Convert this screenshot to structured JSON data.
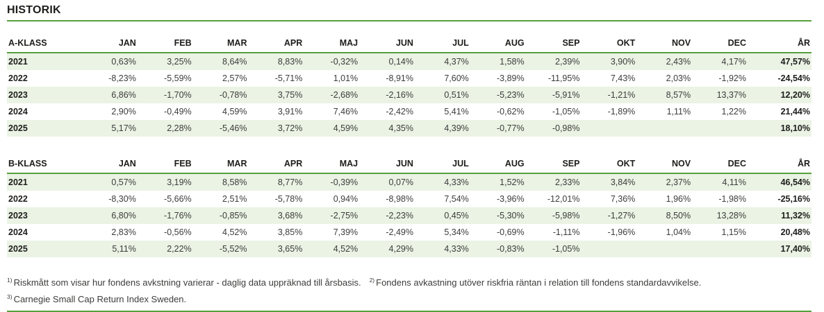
{
  "page": {
    "title": "HISTORIK"
  },
  "colors": {
    "accent_green": "#55a03c",
    "row_stripe_green": "#eaf3e4",
    "heading_text": "#1d1d1b",
    "value_text": "#3c3c3b"
  },
  "columns": {
    "months": [
      "JAN",
      "FEB",
      "MAR",
      "APR",
      "MAJ",
      "JUN",
      "JUL",
      "AUG",
      "SEP",
      "OKT",
      "NOV",
      "DEC"
    ],
    "year_total": "ÅR"
  },
  "tables": [
    {
      "label": "A-KLASS",
      "rows": [
        {
          "year": "2021",
          "months": [
            "0,63%",
            "3,25%",
            "8,64%",
            "8,83%",
            "-0,32%",
            "0,14%",
            "4,37%",
            "1,58%",
            "2,39%",
            "3,90%",
            "2,43%",
            "4,17%"
          ],
          "total": "47,57%"
        },
        {
          "year": "2022",
          "months": [
            "-8,23%",
            "-5,59%",
            "2,57%",
            "-5,71%",
            "1,01%",
            "-8,91%",
            "7,60%",
            "-3,89%",
            "-11,95%",
            "7,43%",
            "2,03%",
            "-1,92%"
          ],
          "total": "-24,54%"
        },
        {
          "year": "2023",
          "months": [
            "6,86%",
            "-1,70%",
            "-0,78%",
            "3,75%",
            "-2,68%",
            "-2,16%",
            "0,51%",
            "-5,23%",
            "-5,91%",
            "-1,21%",
            "8,57%",
            "13,37%"
          ],
          "total": "12,20%"
        },
        {
          "year": "2024",
          "months": [
            "2,90%",
            "-0,49%",
            "4,59%",
            "3,91%",
            "7,46%",
            "-2,42%",
            "5,41%",
            "-0,62%",
            "-1,05%",
            "-1,89%",
            "1,11%",
            "1,22%"
          ],
          "total": "21,44%"
        },
        {
          "year": "2025",
          "months": [
            "5,17%",
            "2,28%",
            "-5,46%",
            "3,72%",
            "4,59%",
            "4,35%",
            "4,39%",
            "-0,77%",
            "-0,98%",
            "",
            "",
            ""
          ],
          "total": "18,10%"
        }
      ]
    },
    {
      "label": "B-KLASS",
      "rows": [
        {
          "year": "2021",
          "months": [
            "0,57%",
            "3,19%",
            "8,58%",
            "8,77%",
            "-0,39%",
            "0,07%",
            "4,33%",
            "1,52%",
            "2,33%",
            "3,84%",
            "2,37%",
            "4,11%"
          ],
          "total": "46,54%"
        },
        {
          "year": "2022",
          "months": [
            "-8,30%",
            "-5,66%",
            "2,51%",
            "-5,78%",
            "0,94%",
            "-8,98%",
            "7,54%",
            "-3,96%",
            "-12,01%",
            "7,36%",
            "1,96%",
            "-1,98%"
          ],
          "total": "-25,16%"
        },
        {
          "year": "2023",
          "months": [
            "6,80%",
            "-1,76%",
            "-0,85%",
            "3,68%",
            "-2,75%",
            "-2,23%",
            "0,45%",
            "-5,30%",
            "-5,98%",
            "-1,27%",
            "8,50%",
            "13,28%"
          ],
          "total": "11,32%"
        },
        {
          "year": "2024",
          "months": [
            "2,83%",
            "-0,56%",
            "4,52%",
            "3,85%",
            "7,39%",
            "-2,49%",
            "5,34%",
            "-0,69%",
            "-1,11%",
            "-1,96%",
            "1,04%",
            "1,15%"
          ],
          "total": "20,48%"
        },
        {
          "year": "2025",
          "months": [
            "5,11%",
            "2,22%",
            "-5,52%",
            "3,65%",
            "4,52%",
            "4,29%",
            "4,33%",
            "-0,83%",
            "-1,05%",
            "",
            "",
            ""
          ],
          "total": "17,40%"
        }
      ]
    }
  ],
  "footnotes": [
    {
      "sup": "1)",
      "text": "Riskmått som visar hur fondens avkstning varierar - daglig data uppräknad till årsbasis."
    },
    {
      "sup": "2)",
      "text": "Fondens avkastning utöver riskfria räntan i relation till fondens standardavvikelse."
    },
    {
      "sup": "3)",
      "text": "Carnegie Small Cap Return Index Sweden."
    }
  ]
}
